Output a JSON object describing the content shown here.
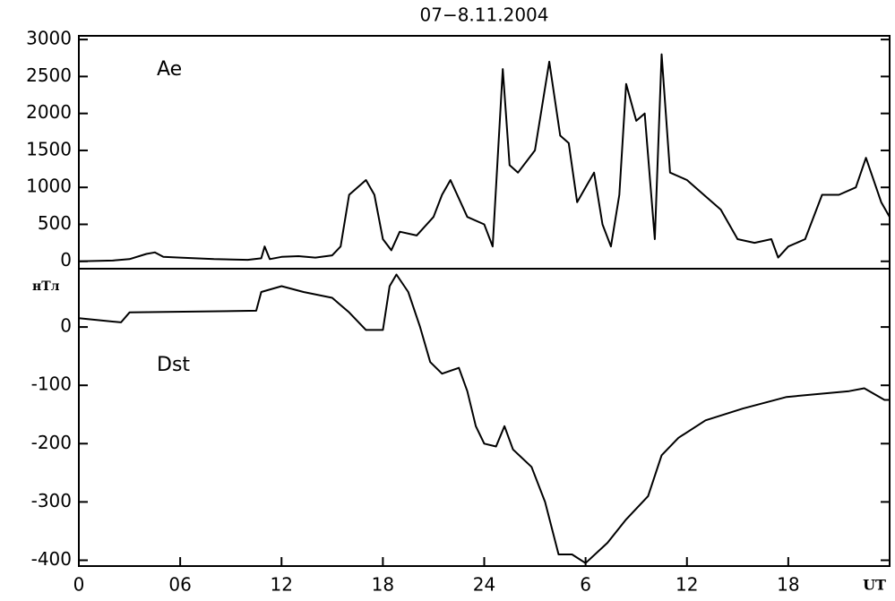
{
  "chart_data": [
    {
      "type": "line",
      "title": "07−8.11.2004",
      "series": [
        {
          "name": "Ae",
          "color": "#000000",
          "x": [
            0,
            2,
            3,
            4,
            4.5,
            5,
            6,
            8,
            10,
            10.8,
            11,
            11.3,
            12,
            13,
            14,
            15,
            15.5,
            16,
            16.5,
            17,
            17.5,
            18,
            18.5,
            19,
            20,
            21,
            21.5,
            22,
            23,
            24,
            24.5,
            25.1,
            25.5,
            26,
            27,
            27.85,
            28.5,
            29,
            29.5,
            30,
            30.5,
            31,
            31.5,
            32,
            32.4,
            33,
            33.5,
            34.1,
            34.5,
            35,
            36,
            37,
            38,
            38.5,
            39,
            40,
            41,
            41.4,
            42,
            43,
            44,
            45,
            46,
            46.6,
            47.5,
            48
          ],
          "values": [
            0,
            10,
            30,
            100,
            120,
            60,
            50,
            30,
            20,
            40,
            200,
            30,
            60,
            70,
            50,
            80,
            200,
            900,
            1000,
            1100,
            900,
            300,
            150,
            400,
            350,
            600,
            900,
            1100,
            600,
            500,
            200,
            2600,
            1300,
            1200,
            1500,
            2700,
            1700,
            1600,
            800,
            1000,
            1200,
            500,
            200,
            900,
            2400,
            1900,
            2000,
            300,
            2800,
            1200,
            1100,
            900,
            700,
            500,
            300,
            250,
            300,
            50,
            200,
            300,
            900,
            900,
            1000,
            1400,
            800,
            600
          ]
        }
      ],
      "xlim": [
        0,
        48
      ],
      "ylim": [
        -100,
        3050
      ],
      "yticks": [
        0,
        500,
        1000,
        1500,
        2000,
        2500,
        3000
      ]
    },
    {
      "type": "line",
      "ylabel": "нТл",
      "xlabel": "UT",
      "series": [
        {
          "name": "Dst",
          "color": "#000000",
          "x": [
            0,
            2.5,
            3,
            10.5,
            10.8,
            12,
            13.3,
            15,
            16,
            17,
            18,
            18.4,
            18.8,
            19.5,
            20.2,
            20.8,
            21.5,
            22.5,
            23,
            23.5,
            24,
            24.7,
            25.2,
            25.7,
            26.8,
            27.6,
            28.4,
            29.2,
            30,
            31.3,
            32.4,
            33.7,
            34.5,
            35.5,
            37.1,
            39.3,
            41.9,
            45.6,
            46.5,
            47.7,
            48
          ],
          "values": [
            15,
            8,
            25,
            28,
            60,
            70,
            60,
            50,
            25,
            -5,
            -5,
            70,
            90,
            60,
            0,
            -60,
            -80,
            -70,
            -110,
            -170,
            -200,
            -205,
            -170,
            -210,
            -240,
            -300,
            -390,
            -390,
            -405,
            -370,
            -330,
            -290,
            -220,
            -190,
            -160,
            -140,
            -120,
            -110,
            -105,
            -125,
            -125
          ]
        }
      ],
      "xlim": [
        0,
        48
      ],
      "ylim": [
        -410,
        100
      ],
      "yticks": [
        0,
        -100,
        -200,
        -300,
        -400
      ],
      "xticks": [
        0,
        {
          "value": 6,
          "label": "06"
        },
        12,
        18,
        24,
        {
          "value": 30,
          "label": "6"
        },
        {
          "value": 36,
          "label": "12"
        },
        {
          "value": 42,
          "label": "18"
        }
      ]
    }
  ]
}
